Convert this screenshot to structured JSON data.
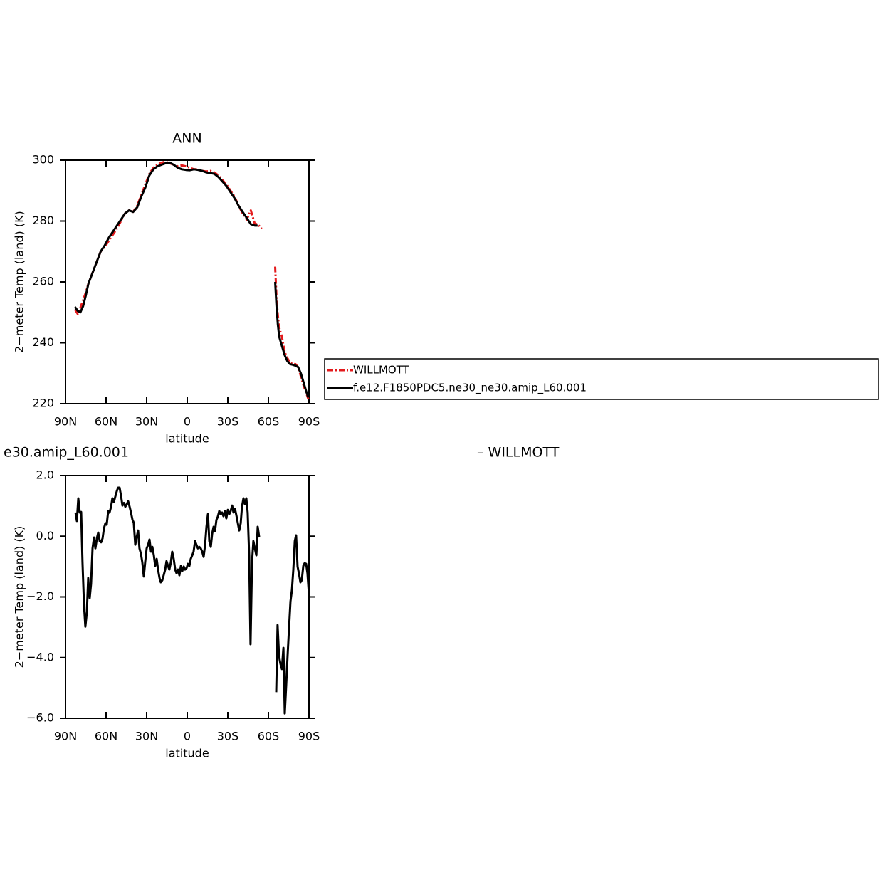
{
  "chart_data": [
    {
      "type": "line",
      "title": "ANN",
      "xlabel": "latitude",
      "ylabel": "2−meter Temp (land) (K)",
      "xlim": [
        90,
        -90
      ],
      "xticks": [
        {
          "value": 90,
          "label": "90N"
        },
        {
          "value": 60,
          "label": "60N"
        },
        {
          "value": 30,
          "label": "30N"
        },
        0,
        {
          "value": -30,
          "label": "30S"
        },
        {
          "value": -60,
          "label": "60S"
        },
        {
          "value": -90,
          "label": "90S"
        }
      ],
      "ylim": [
        220,
        300
      ],
      "yticks": [
        220,
        240,
        260,
        280,
        300
      ],
      "legend": "right",
      "x": [
        83,
        81,
        79,
        77,
        75,
        73,
        70,
        67,
        64,
        61,
        58,
        55,
        52,
        49,
        46,
        43,
        40,
        37,
        34,
        31,
        28,
        25,
        22,
        19,
        16,
        13,
        10,
        7,
        4,
        1,
        -2,
        -5,
        -8,
        -11,
        -14,
        -17,
        -20,
        -23,
        -26,
        -29,
        -32,
        -35,
        -38,
        -41,
        -44,
        -47,
        -50,
        -52,
        -55,
        -60,
        -65,
        -66,
        -67,
        -68,
        -70,
        -72,
        -74,
        -76,
        -78,
        -80,
        -82,
        -84,
        -86,
        -88,
        -89.5
      ],
      "series": [
        {
          "name": "WILLMOTT",
          "color": "#e31a1c",
          "line_style": "dashed",
          "values": [
            251,
            249.5,
            251.5,
            254,
            256.5,
            259.5,
            263,
            266.5,
            270,
            271.5,
            273.5,
            275.5,
            277.5,
            280,
            282.5,
            283.5,
            283,
            285,
            288.5,
            292,
            295.5,
            297.5,
            298.5,
            299.2,
            299.5,
            299,
            298.5,
            298,
            298.3,
            298,
            297.5,
            297,
            297,
            296.5,
            296.3,
            296.5,
            296,
            295,
            293.5,
            292,
            290,
            288,
            285,
            282.5,
            280.5,
            283.5,
            279,
            279,
            277.5,
            null,
            265,
            255,
            249,
            245,
            242,
            237,
            235,
            233.5,
            233,
            233,
            232,
            229,
            226,
            223.5,
            221.5
          ]
        },
        {
          "name": "f.e12.F1850PDC5.ne30_ne30.amip_L60.001",
          "color": "#000000",
          "line_style": "solid",
          "values": [
            251.8,
            250.5,
            250,
            252,
            255.5,
            259.5,
            263,
            266.5,
            270,
            272,
            274.5,
            276.5,
            278.5,
            280.5,
            282.5,
            283.5,
            283,
            284.5,
            288,
            291,
            295,
            297,
            298,
            298.5,
            299,
            299.2,
            298.5,
            297.5,
            297,
            296.8,
            296.7,
            297,
            296.8,
            296.5,
            296,
            295.8,
            295.5,
            294.5,
            293,
            291.5,
            289.5,
            287.5,
            285,
            283,
            281,
            279,
            278.5,
            278.5,
            null,
            null,
            260,
            252,
            246,
            242,
            239,
            236,
            234,
            233,
            232.8,
            232.5,
            232,
            230,
            227,
            224,
            222
          ]
        }
      ]
    },
    {
      "type": "line",
      "left_title": "e30.amip_L60.001",
      "right_title": "– WILLMOTT",
      "xlabel": "latitude",
      "ylabel": "2−meter Temp (land) (K)",
      "xlim": [
        90,
        -90
      ],
      "xticks": [
        {
          "value": 90,
          "label": "90N"
        },
        {
          "value": 60,
          "label": "60N"
        },
        {
          "value": 30,
          "label": "30N"
        },
        0,
        {
          "value": -30,
          "label": "30S"
        },
        {
          "value": -60,
          "label": "60S"
        },
        {
          "value": -90,
          "label": "90S"
        }
      ],
      "ylim": [
        -6,
        2
      ],
      "yticks": [
        {
          "value": -6,
          "label": "−6.0"
        },
        {
          "value": -4,
          "label": "−4.0"
        },
        {
          "value": -2,
          "label": "−2.0"
        },
        {
          "value": 0,
          "label": "0.0"
        },
        {
          "value": 2,
          "label": "2.0"
        }
      ],
      "x": [
        82.6,
        81.6,
        80.5,
        79.5,
        78.4,
        77.4,
        76.3,
        75.3,
        74.2,
        73.2,
        72.1,
        71.1,
        70,
        68.9,
        67.9,
        66.8,
        65.8,
        64.7,
        63.7,
        62.6,
        61.6,
        60.5,
        59.5,
        58.4,
        57.4,
        56.3,
        55.3,
        54.2,
        53.2,
        52.1,
        51.1,
        50,
        48.9,
        47.9,
        46.8,
        45.8,
        44.7,
        43.7,
        42.6,
        41.6,
        40.5,
        39.5,
        38.4,
        37.4,
        36.3,
        35.3,
        34.2,
        33.2,
        32.1,
        31.1,
        30,
        28.9,
        27.9,
        26.8,
        25.8,
        24.7,
        23.7,
        22.6,
        21.6,
        20.5,
        19.5,
        18.4,
        17.4,
        16.3,
        15.3,
        14.2,
        13.2,
        12.1,
        11.1,
        10,
        8.9,
        7.9,
        6.8,
        5.8,
        4.7,
        3.7,
        2.6,
        1.6,
        0.5,
        -0.5,
        -1.6,
        -2.6,
        -3.7,
        -4.7,
        -5.8,
        -6.8,
        -7.9,
        -8.9,
        -10,
        -11.1,
        -12.1,
        -13.2,
        -14.2,
        -15.3,
        -16.3,
        -17.4,
        -18.4,
        -19.5,
        -20.5,
        -21.6,
        -22.6,
        -23.7,
        -24.7,
        -25.8,
        -26.8,
        -27.9,
        -28.9,
        -30,
        -31.1,
        -32.1,
        -33.2,
        -34.2,
        -35.3,
        -36.3,
        -37.4,
        -38.4,
        -39.5,
        -40.5,
        -41.6,
        -42.6,
        -43.7,
        -44.7,
        -45.8,
        -46.8,
        -47.9,
        -48.9,
        -50,
        -51.1,
        -52.1,
        -53.2,
        -60,
        -65.8,
        -66.8,
        -67.9,
        -68.9,
        -70,
        -71.1,
        -72.1,
        -73.2,
        -74.2,
        -75.3,
        -76.3,
        -77.4,
        -78.4,
        -79.5,
        -80.5,
        -81.6,
        -82.6,
        -83.7,
        -84.7,
        -85.8,
        -86.8,
        -87.9,
        -88.9,
        -90
      ],
      "series": [
        {
          "color": "#000000",
          "line_style": "solid",
          "values": [
            0.78,
            0.5,
            1.25,
            0.78,
            0.8,
            -0.86,
            -2.27,
            -2.98,
            -2.5,
            -1.38,
            -2.04,
            -1.57,
            -0.4,
            -0.04,
            -0.4,
            -0.07,
            0.12,
            -0.16,
            -0.2,
            -0.07,
            0.26,
            0.43,
            0.38,
            0.83,
            0.78,
            0.97,
            1.25,
            1.13,
            1.3,
            1.48,
            1.6,
            1.6,
            1.32,
            1.01,
            1.1,
            0.97,
            1.06,
            1.15,
            0.97,
            0.78,
            0.54,
            0.45,
            -0.28,
            -0.04,
            0.19,
            -0.4,
            -0.58,
            -0.86,
            -1.33,
            -0.86,
            -0.4,
            -0.28,
            -0.11,
            -0.51,
            -0.35,
            -0.63,
            -0.98,
            -0.75,
            -1.1,
            -1.38,
            -1.52,
            -1.45,
            -1.29,
            -1.1,
            -0.82,
            -0.98,
            -1.1,
            -0.86,
            -0.51,
            -0.75,
            -1.1,
            -1.22,
            -1.1,
            -1.29,
            -0.98,
            -1.15,
            -1.0,
            -1.1,
            -1.05,
            -0.91,
            -0.98,
            -0.75,
            -0.63,
            -0.51,
            -0.16,
            -0.28,
            -0.4,
            -0.35,
            -0.4,
            -0.51,
            -0.68,
            -0.28,
            0.31,
            0.73,
            -0.16,
            -0.35,
            0.08,
            0.31,
            0.17,
            0.54,
            0.64,
            0.83,
            0.73,
            0.78,
            0.66,
            0.83,
            0.59,
            0.87,
            0.73,
            0.83,
            1.01,
            0.78,
            0.9,
            0.69,
            0.43,
            0.19,
            0.43,
            0.97,
            1.25,
            1.06,
            1.25,
            0.78,
            -0.63,
            -3.56,
            -0.86,
            -0.16,
            -0.4,
            -0.63,
            0.31,
            -0.04,
            null,
            -5.14,
            -2.93,
            -3.96,
            -4.2,
            -4.38,
            -3.68,
            -5.84,
            -4.85,
            -3.92,
            -2.98,
            -2.15,
            -1.76,
            -1.1,
            -0.16,
            0.03,
            -1.0,
            -1.22,
            -1.52,
            -1.45,
            -0.98,
            -0.89,
            -0.91,
            -1.22,
            -1.92
          ]
        }
      ]
    }
  ]
}
